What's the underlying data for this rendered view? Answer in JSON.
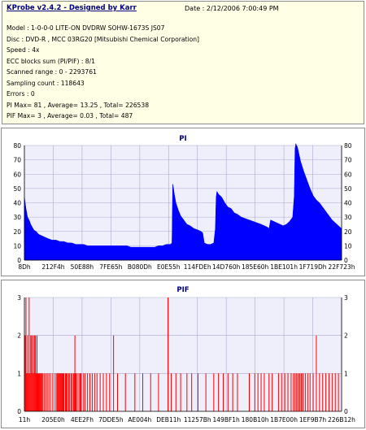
{
  "header": {
    "title": "KProbe v2.4.2 - Designed by Karr",
    "date_line": "Date : 2/12/2006 7:00:49 PM",
    "lines": [
      "Model : 1-0-0-0 LITE-ON DVDRW SOHW-1673S JS07",
      "Disc : DVD-R , MCC 03RG20  [Mitsubishi Chemical Corporation]",
      "Speed : 4x",
      "ECC blocks sum (PI/PIF) : 8/1",
      "Scanned range : 0 - 2293761",
      "Sampling count : 118643",
      "Errors : 0",
      "PI Max= 81 , Average= 13.25 , Total= 226538",
      "PIF Max= 3 , Average= 0.03 , Total= 487"
    ]
  },
  "colors": {
    "panel_bg": "#ffffe6",
    "plot_bg": "#efeffc",
    "pi_fill": "#0000ff",
    "pif_bar": "#ff0000",
    "chart_title": "#000080",
    "grid": "#a8a8cc"
  },
  "chart_data": [
    {
      "type": "area",
      "title": "PI",
      "ylim": [
        0,
        80
      ],
      "yticks": [
        0,
        10,
        20,
        30,
        40,
        50,
        60,
        70,
        80
      ],
      "xlim": [
        0,
        2293761
      ],
      "xticks": [
        "8Dh",
        "212F4h",
        "50E88h",
        "7FE65h",
        "B080Dh",
        "E0E55h",
        "114FDEh",
        "14D760h",
        "185E60h",
        "1BE101h",
        "1F719Dh",
        "22F723h"
      ],
      "grid": true,
      "envelope": [
        [
          0,
          44
        ],
        [
          2,
          36
        ],
        [
          4,
          30
        ],
        [
          6,
          28
        ],
        [
          8,
          25
        ],
        [
          10,
          23
        ],
        [
          12,
          21
        ],
        [
          15,
          20
        ],
        [
          18,
          18
        ],
        [
          22,
          17
        ],
        [
          26,
          16
        ],
        [
          30,
          15
        ],
        [
          35,
          14
        ],
        [
          40,
          14
        ],
        [
          45,
          13
        ],
        [
          50,
          13
        ],
        [
          55,
          12
        ],
        [
          60,
          12
        ],
        [
          65,
          11
        ],
        [
          70,
          11
        ],
        [
          75,
          11
        ],
        [
          80,
          10
        ],
        [
          85,
          10
        ],
        [
          90,
          10
        ],
        [
          95,
          10
        ],
        [
          100,
          10
        ],
        [
          105,
          10
        ],
        [
          110,
          10
        ],
        [
          115,
          10
        ],
        [
          120,
          10
        ],
        [
          125,
          10
        ],
        [
          130,
          10
        ],
        [
          135,
          9
        ],
        [
          140,
          9
        ],
        [
          145,
          9
        ],
        [
          150,
          9
        ],
        [
          155,
          9
        ],
        [
          160,
          9
        ],
        [
          165,
          9
        ],
        [
          170,
          10
        ],
        [
          175,
          10
        ],
        [
          180,
          11
        ],
        [
          185,
          11
        ],
        [
          187,
          12
        ],
        [
          188,
          53
        ],
        [
          189,
          50
        ],
        [
          190,
          46
        ],
        [
          192,
          40
        ],
        [
          195,
          35
        ],
        [
          198,
          31
        ],
        [
          202,
          28
        ],
        [
          206,
          25
        ],
        [
          210,
          24
        ],
        [
          215,
          22
        ],
        [
          220,
          21
        ],
        [
          224,
          20
        ],
        [
          226,
          19
        ],
        [
          228,
          12
        ],
        [
          232,
          11
        ],
        [
          236,
          11
        ],
        [
          240,
          12
        ],
        [
          242,
          22
        ],
        [
          243,
          44
        ],
        [
          244,
          48
        ],
        [
          246,
          46
        ],
        [
          250,
          44
        ],
        [
          254,
          40
        ],
        [
          258,
          37
        ],
        [
          262,
          36
        ],
        [
          266,
          33
        ],
        [
          270,
          32
        ],
        [
          275,
          30
        ],
        [
          280,
          29
        ],
        [
          285,
          28
        ],
        [
          290,
          27
        ],
        [
          295,
          26
        ],
        [
          300,
          25
        ],
        [
          304,
          24
        ],
        [
          308,
          23
        ],
        [
          310,
          22
        ],
        [
          312,
          28
        ],
        [
          316,
          27
        ],
        [
          320,
          26
        ],
        [
          324,
          25
        ],
        [
          328,
          24
        ],
        [
          332,
          25
        ],
        [
          336,
          27
        ],
        [
          340,
          30
        ],
        [
          342,
          45
        ],
        [
          343,
          78
        ],
        [
          344,
          81
        ],
        [
          346,
          79
        ],
        [
          348,
          74
        ],
        [
          350,
          69
        ],
        [
          354,
          62
        ],
        [
          358,
          56
        ],
        [
          362,
          50
        ],
        [
          366,
          45
        ],
        [
          370,
          42
        ],
        [
          374,
          40
        ],
        [
          378,
          37
        ],
        [
          382,
          34
        ],
        [
          386,
          31
        ],
        [
          390,
          28
        ],
        [
          394,
          26
        ],
        [
          398,
          24
        ],
        [
          400,
          23
        ],
        [
          402,
          22
        ]
      ]
    },
    {
      "type": "bar",
      "title": "PIF",
      "ylim": [
        0,
        3
      ],
      "yticks": [
        0,
        1,
        2,
        3
      ],
      "xlim": [
        0,
        2293761
      ],
      "xticks": [
        "11h",
        "205E0h",
        "4EE2Fh",
        "7DDE5h",
        "AE004h",
        "DEB11h",
        "11257Bh",
        "149BF1h",
        "180B10h",
        "1B7E00h",
        "1EF9B7h",
        "226B12h"
      ],
      "grid": true,
      "bars": [
        [
          1,
          2
        ],
        [
          2,
          3
        ],
        [
          3,
          1
        ],
        [
          4,
          2
        ],
        [
          5,
          1
        ],
        [
          6,
          3
        ],
        [
          7,
          1
        ],
        [
          8,
          2
        ],
        [
          9,
          2
        ],
        [
          10,
          1
        ],
        [
          11,
          2
        ],
        [
          12,
          1
        ],
        [
          13,
          2
        ],
        [
          14,
          2
        ],
        [
          15,
          1
        ],
        [
          16,
          2
        ],
        [
          17,
          1
        ],
        [
          18,
          1
        ],
        [
          19,
          1
        ],
        [
          20,
          1
        ],
        [
          21,
          1
        ],
        [
          22,
          1
        ],
        [
          23,
          1
        ],
        [
          25,
          1
        ],
        [
          27,
          1
        ],
        [
          29,
          1
        ],
        [
          31,
          1
        ],
        [
          33,
          1
        ],
        [
          36,
          1
        ],
        [
          39,
          1
        ],
        [
          41,
          1
        ],
        [
          42,
          1
        ],
        [
          43,
          1
        ],
        [
          44,
          1
        ],
        [
          45,
          1
        ],
        [
          46,
          1
        ],
        [
          47,
          1
        ],
        [
          48,
          1
        ],
        [
          49,
          1
        ],
        [
          50,
          1
        ],
        [
          52,
          1
        ],
        [
          53,
          1
        ],
        [
          54,
          1
        ],
        [
          56,
          1
        ],
        [
          57,
          1
        ],
        [
          59,
          1
        ],
        [
          60,
          1
        ],
        [
          62,
          1
        ],
        [
          63,
          1
        ],
        [
          64,
          2
        ],
        [
          65,
          1
        ],
        [
          66,
          1
        ],
        [
          68,
          1
        ],
        [
          70,
          1
        ],
        [
          71,
          1
        ],
        [
          72,
          1
        ],
        [
          75,
          1
        ],
        [
          77,
          1
        ],
        [
          80,
          1
        ],
        [
          83,
          1
        ],
        [
          86,
          1
        ],
        [
          89,
          1
        ],
        [
          92,
          1
        ],
        [
          96,
          1
        ],
        [
          100,
          1
        ],
        [
          104,
          1
        ],
        [
          108,
          1
        ],
        [
          113,
          2
        ],
        [
          118,
          1
        ],
        [
          128,
          1
        ],
        [
          140,
          1
        ],
        [
          150,
          1
        ],
        [
          160,
          1
        ],
        [
          170,
          1
        ],
        [
          182,
          3
        ],
        [
          186,
          1
        ],
        [
          192,
          1
        ],
        [
          198,
          1
        ],
        [
          206,
          1
        ],
        [
          212,
          1
        ],
        [
          220,
          1
        ],
        [
          230,
          1
        ],
        [
          240,
          1
        ],
        [
          246,
          1
        ],
        [
          252,
          1
        ],
        [
          258,
          1
        ],
        [
          264,
          1
        ],
        [
          270,
          1
        ],
        [
          285,
          1
        ],
        [
          292,
          1
        ],
        [
          296,
          1
        ],
        [
          300,
          1
        ],
        [
          304,
          1
        ],
        [
          310,
          1
        ],
        [
          314,
          1
        ],
        [
          322,
          1
        ],
        [
          326,
          1
        ],
        [
          330,
          1
        ],
        [
          334,
          1
        ],
        [
          338,
          1
        ],
        [
          341,
          1
        ],
        [
          343,
          1
        ],
        [
          345,
          1
        ],
        [
          347,
          1
        ],
        [
          349,
          1
        ],
        [
          351,
          1
        ],
        [
          353,
          1
        ],
        [
          356,
          1
        ],
        [
          359,
          1
        ],
        [
          362,
          1
        ],
        [
          366,
          1
        ],
        [
          370,
          2
        ],
        [
          374,
          1
        ],
        [
          378,
          1
        ],
        [
          382,
          1
        ],
        [
          386,
          1
        ],
        [
          390,
          1
        ],
        [
          394,
          1
        ],
        [
          398,
          1
        ]
      ]
    }
  ]
}
